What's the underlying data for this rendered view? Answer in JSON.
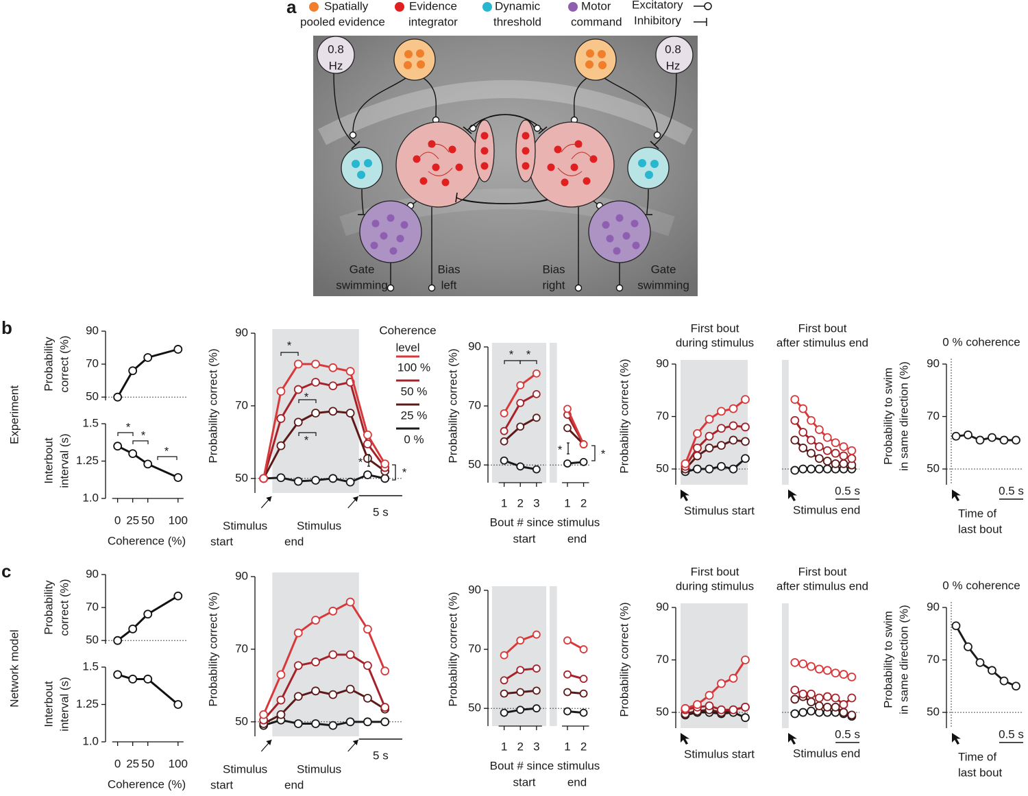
{
  "diagram": {
    "label": "a",
    "legend": [
      {
        "lines": [
          "Spatially",
          "pooled evidence"
        ]
      },
      {
        "lines": [
          "Evidence",
          "integrator"
        ]
      },
      {
        "lines": [
          "Dynamic",
          "threshold"
        ]
      },
      {
        "lines": [
          "Motor",
          "command"
        ]
      }
    ],
    "excitatory": "Excitatory",
    "inhibitory": "Inhibitory",
    "rate_left": [
      "0.8",
      "Hz"
    ],
    "rate_right": [
      "0.8",
      "Hz"
    ],
    "outputs": [
      [
        "Gate",
        "swimming"
      ],
      [
        "Bias",
        "left"
      ],
      [
        "Bias",
        "right"
      ],
      [
        "Gate",
        "swimming"
      ]
    ]
  },
  "rows": [
    {
      "label": "b",
      "name": "Experiment"
    },
    {
      "label": "c",
      "name": "Network model"
    }
  ],
  "chart_data": [
    {
      "type": "line",
      "ylabel": [
        "Probability",
        "correct (%)"
      ],
      "x": [
        0,
        25,
        50,
        100
      ],
      "xlim": [
        -20,
        115
      ],
      "ylim": [
        48,
        90
      ],
      "yticks": [
        50,
        70,
        90
      ],
      "refline": 50,
      "series": [
        {
          "color": "#111111",
          "values": [
            50,
            66,
            74,
            79
          ]
        }
      ]
    },
    {
      "type": "line",
      "ylabel": [
        "Interbout",
        "interval (s)"
      ],
      "x": [
        0,
        25,
        50,
        100
      ],
      "xlim": [
        -20,
        115
      ],
      "xticks": [
        0,
        25,
        50,
        100
      ],
      "xlabel": "Coherence (%)",
      "ylim": [
        1,
        1.5
      ],
      "yticks": [
        {
          "value": 1,
          "label": "1.0"
        },
        1.25,
        1.5
      ],
      "series": [
        {
          "color": "#111111",
          "values": [
            1.35,
            1.3,
            1.23,
            1.14
          ]
        }
      ],
      "stars": [
        "*",
        "*",
        "*"
      ]
    },
    {
      "type": "line",
      "ylabel": "Probability correct (%)",
      "x": [
        0,
        2,
        4,
        6,
        8,
        10,
        12,
        14
      ],
      "xlim": [
        -1,
        16
      ],
      "ylim": [
        46,
        90
      ],
      "yticks": [
        50,
        70,
        90
      ],
      "refline": 50,
      "shade": [
        1,
        11
      ],
      "legend_title": [
        "Coherence",
        "level"
      ],
      "series": [
        {
          "name": "100 %",
          "color": "#d8383a",
          "values": [
            50,
            74,
            81.5,
            81.5,
            80.5,
            79.5,
            62,
            54
          ]
        },
        {
          "name": "50 %",
          "color": "#a5222a",
          "values": [
            50,
            66.5,
            74.5,
            76.5,
            75.5,
            76.5,
            59.5,
            53
          ]
        },
        {
          "name": "25 %",
          "color": "#5b1a1a",
          "values": [
            50,
            59,
            65.5,
            68,
            68.5,
            68,
            55.5,
            52
          ]
        },
        {
          "name": "0 %",
          "color": "#1a1a1a",
          "values": [
            50,
            50.2,
            49.2,
            49.5,
            50,
            49,
            51,
            50
          ]
        }
      ],
      "start_note": [
        "Stimulus",
        "start"
      ],
      "end_note": [
        "Stimulus",
        "end"
      ],
      "scalebar": {
        "value": 5,
        "label": "5 s"
      },
      "stars": [
        "*",
        "*",
        "*",
        "*",
        "*"
      ]
    },
    {
      "type": "line",
      "ylabel": "Probability correct (%)",
      "x": [
        1,
        2,
        3
      ],
      "xlim": [
        0,
        3.6
      ],
      "xticks": [
        1,
        2,
        3
      ],
      "xlabel": [
        "Bout # since stimulus",
        "start"
      ],
      "ylim": [
        44,
        90
      ],
      "yticks": [
        50,
        70,
        90
      ],
      "refline": 50,
      "shade": [
        0.25,
        3.6
      ],
      "series": [
        {
          "color": "#d8383a",
          "values": [
            67.5,
            77,
            81
          ]
        },
        {
          "color": "#a5222a",
          "values": [
            61.5,
            71,
            74
          ]
        },
        {
          "color": "#5b1a1a",
          "values": [
            58,
            63,
            66
          ]
        },
        {
          "color": "#1a1a1a",
          "values": [
            51.5,
            49.5,
            48.5
          ]
        }
      ],
      "stars": [
        "*",
        "*"
      ]
    },
    {
      "type": "line",
      "x": [
        1,
        2
      ],
      "xlim": [
        -0.1,
        2.4
      ],
      "xticks": [
        1,
        2
      ],
      "xlabel": [
        "end"
      ],
      "ylim": [
        44,
        90
      ],
      "refline": 50,
      "shade": [
        -0.1,
        0.35
      ],
      "series": [
        {
          "color": "#d8383a",
          "values": [
            69,
            57
          ]
        },
        {
          "color": "#a5222a",
          "values": [
            67,
            57
          ]
        },
        {
          "color": "#5b1a1a",
          "values": [
            62.5,
            57
          ]
        },
        {
          "color": "#1a1a1a",
          "values": [
            50.5,
            51
          ]
        }
      ],
      "stars": [
        "*",
        "*"
      ]
    },
    {
      "type": "line",
      "title": [
        "First bout",
        "during stimulus"
      ],
      "ylabel": "Probability correct (%)",
      "x": [
        0.2,
        0.45,
        0.7,
        0.95,
        1.2,
        1.45
      ],
      "xlim": [
        0,
        1.5
      ],
      "ylim": [
        44,
        90
      ],
      "yticks": [
        50,
        70,
        90
      ],
      "refline": 50,
      "shade": [
        0.1,
        1.5
      ],
      "series": [
        {
          "color": "#d8383a",
          "values": [
            52,
            63.5,
            69,
            72,
            73,
            76.5
          ]
        },
        {
          "color": "#a5222a",
          "values": [
            51,
            58,
            62.5,
            65.5,
            66.5,
            66
          ]
        },
        {
          "color": "#5b1a1a",
          "values": [
            50,
            55,
            58,
            59,
            61,
            60.5
          ]
        },
        {
          "color": "#1a1a1a",
          "values": [
            49,
            50,
            50,
            51,
            50,
            54
          ]
        }
      ],
      "start_note": [
        "Stimulus start"
      ]
    },
    {
      "type": "line",
      "title": [
        "First bout",
        "after stimulus end"
      ],
      "x": [
        0.27,
        0.44,
        0.61,
        0.78,
        0.95,
        1.12,
        1.29,
        1.46
      ],
      "xlim": [
        0,
        1.62
      ],
      "ylim": [
        44,
        90
      ],
      "refline": 50,
      "shade": [
        0,
        0.14
      ],
      "series": [
        {
          "color": "#d8383a",
          "values": [
            76.5,
            73,
            68.5,
            65,
            62,
            60,
            58.5,
            57
          ]
        },
        {
          "color": "#a5222a",
          "values": [
            68.5,
            64,
            61,
            58.5,
            57,
            56,
            55,
            54
          ]
        },
        {
          "color": "#5b1a1a",
          "values": [
            61,
            58,
            56,
            54,
            53,
            52,
            52,
            51.5
          ]
        },
        {
          "color": "#1a1a1a",
          "values": [
            49.5,
            50,
            50,
            50,
            50,
            50,
            50,
            50
          ]
        }
      ],
      "end_note": [
        "Stimulus end"
      ],
      "scalebar": {
        "value": 0.5,
        "label": "0.5 s"
      }
    },
    {
      "type": "line",
      "title": [
        "0 % coherence"
      ],
      "ylabel": [
        "Probability to swim",
        "in same direction (%)"
      ],
      "x": [
        0.1,
        0.35,
        0.6,
        0.85,
        1.1,
        1.35
      ],
      "xlim": [
        -0.1,
        1.5
      ],
      "ylim": [
        44,
        90
      ],
      "yticks": [
        50,
        70,
        90
      ],
      "refline": 50,
      "vline": 0,
      "series": [
        {
          "color": "#1a1a1a",
          "values": [
            62.5,
            63,
            61,
            62,
            61,
            61
          ]
        }
      ],
      "last_bout_note": [
        "Time of",
        "last bout"
      ],
      "scalebar": {
        "value": 0.5,
        "label": "0.5 s"
      }
    },
    {
      "type": "line",
      "ylabel": [
        "Probability",
        "correct (%)"
      ],
      "x": [
        0,
        25,
        50,
        100
      ],
      "xlim": [
        -20,
        115
      ],
      "ylim": [
        48,
        90
      ],
      "yticks": [
        50,
        70,
        90
      ],
      "refline": 50,
      "series": [
        {
          "color": "#111111",
          "values": [
            50,
            57,
            66,
            77
          ]
        }
      ]
    },
    {
      "type": "line",
      "ylabel": [
        "Interbout",
        "interval (s)"
      ],
      "x": [
        0,
        25,
        50,
        100
      ],
      "xlim": [
        -20,
        115
      ],
      "xticks": [
        0,
        25,
        50,
        100
      ],
      "xlabel": "Coherence (%)",
      "ylim": [
        1,
        1.5
      ],
      "yticks": [
        {
          "value": 1,
          "label": "1.0"
        },
        1.25,
        1.5
      ],
      "series": [
        {
          "color": "#111111",
          "values": [
            1.45,
            1.42,
            1.42,
            1.25
          ]
        }
      ]
    },
    {
      "type": "line",
      "ylabel": "Probability correct (%)",
      "x": [
        0,
        2,
        4,
        6,
        8,
        10,
        12,
        14
      ],
      "xlim": [
        -1,
        16
      ],
      "ylim": [
        46,
        90
      ],
      "yticks": [
        50,
        70,
        90
      ],
      "refline": 50,
      "shade": [
        1,
        11
      ],
      "series": [
        {
          "color": "#d8383a",
          "values": [
            52,
            63,
            74.5,
            78,
            80.5,
            83,
            75.5,
            64
          ]
        },
        {
          "color": "#a5222a",
          "values": [
            50.5,
            56,
            65.5,
            66.5,
            68.5,
            68.5,
            65.5,
            54
          ]
        },
        {
          "color": "#5b1a1a",
          "values": [
            49.5,
            52,
            57,
            58.5,
            57.5,
            59,
            56.5,
            53.5
          ]
        },
        {
          "color": "#1a1a1a",
          "values": [
            49,
            50.5,
            49.5,
            49.5,
            49,
            50,
            50,
            50
          ]
        }
      ],
      "start_note": [
        "Stimulus",
        "start"
      ],
      "end_note": [
        "Stimulus",
        "end"
      ],
      "scalebar": {
        "value": 5,
        "label": "5 s"
      }
    },
    {
      "type": "line",
      "ylabel": "Probability correct (%)",
      "x": [
        1,
        2,
        3
      ],
      "xlim": [
        0,
        3.6
      ],
      "xticks": [
        1,
        2,
        3
      ],
      "xlabel": [
        "Bout # since stimulus",
        "start"
      ],
      "ylim": [
        44,
        90
      ],
      "yticks": [
        50,
        70,
        90
      ],
      "refline": 50,
      "shade": [
        0.25,
        3.6
      ],
      "series": [
        {
          "color": "#d8383a",
          "values": [
            68,
            73,
            75
          ]
        },
        {
          "color": "#a5222a",
          "values": [
            59.5,
            63,
            63.5
          ]
        },
        {
          "color": "#5b1a1a",
          "values": [
            55,
            55.5,
            56
          ]
        },
        {
          "color": "#1a1a1a",
          "values": [
            48.5,
            49.5,
            50
          ]
        }
      ]
    },
    {
      "type": "line",
      "x": [
        1,
        2
      ],
      "xlim": [
        -0.1,
        2.4
      ],
      "xticks": [
        1,
        2
      ],
      "xlabel": [
        "end"
      ],
      "ylim": [
        44,
        90
      ],
      "refline": 50,
      "shade": [
        -0.1,
        0.35
      ],
      "series": [
        {
          "color": "#d8383a",
          "values": [
            73,
            70
          ]
        },
        {
          "color": "#a5222a",
          "values": [
            61.5,
            60
          ]
        },
        {
          "color": "#5b1a1a",
          "values": [
            55.5,
            55
          ]
        },
        {
          "color": "#1a1a1a",
          "values": [
            49,
            48.5
          ]
        }
      ]
    },
    {
      "type": "line",
      "title": [
        "First bout",
        "during stimulus"
      ],
      "ylabel": "Probability correct (%)",
      "x": [
        0.2,
        0.45,
        0.7,
        0.95,
        1.2,
        1.45
      ],
      "xlim": [
        0,
        1.5
      ],
      "ylim": [
        44,
        90
      ],
      "yticks": [
        50,
        70,
        90
      ],
      "refline": 50,
      "shade": [
        0.1,
        1.5
      ],
      "series": [
        {
          "color": "#d8383a",
          "values": [
            51.5,
            53,
            56.5,
            61,
            63,
            70
          ]
        },
        {
          "color": "#a5222a",
          "values": [
            51,
            52,
            52.5,
            51,
            51,
            52
          ]
        },
        {
          "color": "#5b1a1a",
          "values": [
            49.5,
            50.5,
            51,
            50,
            51,
            52
          ]
        },
        {
          "color": "#1a1a1a",
          "values": [
            49,
            50,
            50,
            49.5,
            50,
            48
          ]
        }
      ],
      "start_note": [
        "Stimulus start"
      ]
    },
    {
      "type": "line",
      "title": [
        "First bout",
        "after stimulus end"
      ],
      "x": [
        0.27,
        0.44,
        0.61,
        0.78,
        0.95,
        1.12,
        1.29,
        1.46
      ],
      "xlim": [
        0,
        1.62
      ],
      "ylim": [
        44,
        90
      ],
      "refline": 50,
      "shade": [
        0,
        0.14
      ],
      "series": [
        {
          "color": "#d8383a",
          "values": [
            69,
            68.5,
            67.5,
            66.5,
            66,
            65,
            64.5,
            63.5
          ]
        },
        {
          "color": "#a5222a",
          "values": [
            58.5,
            57,
            57,
            55.5,
            56,
            55.5,
            53,
            55.5
          ]
        },
        {
          "color": "#5b1a1a",
          "values": [
            55,
            56,
            54,
            52.5,
            52,
            52,
            50,
            49
          ]
        },
        {
          "color": "#1a1a1a",
          "values": [
            49.5,
            50,
            50.5,
            50,
            50,
            50,
            49.5,
            48.5
          ]
        }
      ],
      "end_note": [
        "Stimulus end"
      ],
      "scalebar": {
        "value": 0.5,
        "label": "0.5 s"
      }
    },
    {
      "type": "line",
      "title": [
        "0 % coherence"
      ],
      "ylabel": [
        "Probability to swim",
        "in same direction (%)"
      ],
      "x": [
        0.1,
        0.35,
        0.6,
        0.85,
        1.1,
        1.35
      ],
      "xlim": [
        -0.1,
        1.5
      ],
      "ylim": [
        44,
        90
      ],
      "yticks": [
        50,
        70,
        90
      ],
      "refline": 50,
      "vline": 0,
      "series": [
        {
          "color": "#1a1a1a",
          "values": [
            83,
            75,
            69,
            66,
            62,
            60
          ]
        }
      ],
      "last_bout_note": [
        "Time of",
        "last bout"
      ],
      "scalebar": {
        "value": 0.5,
        "label": "0.5 s"
      }
    }
  ]
}
